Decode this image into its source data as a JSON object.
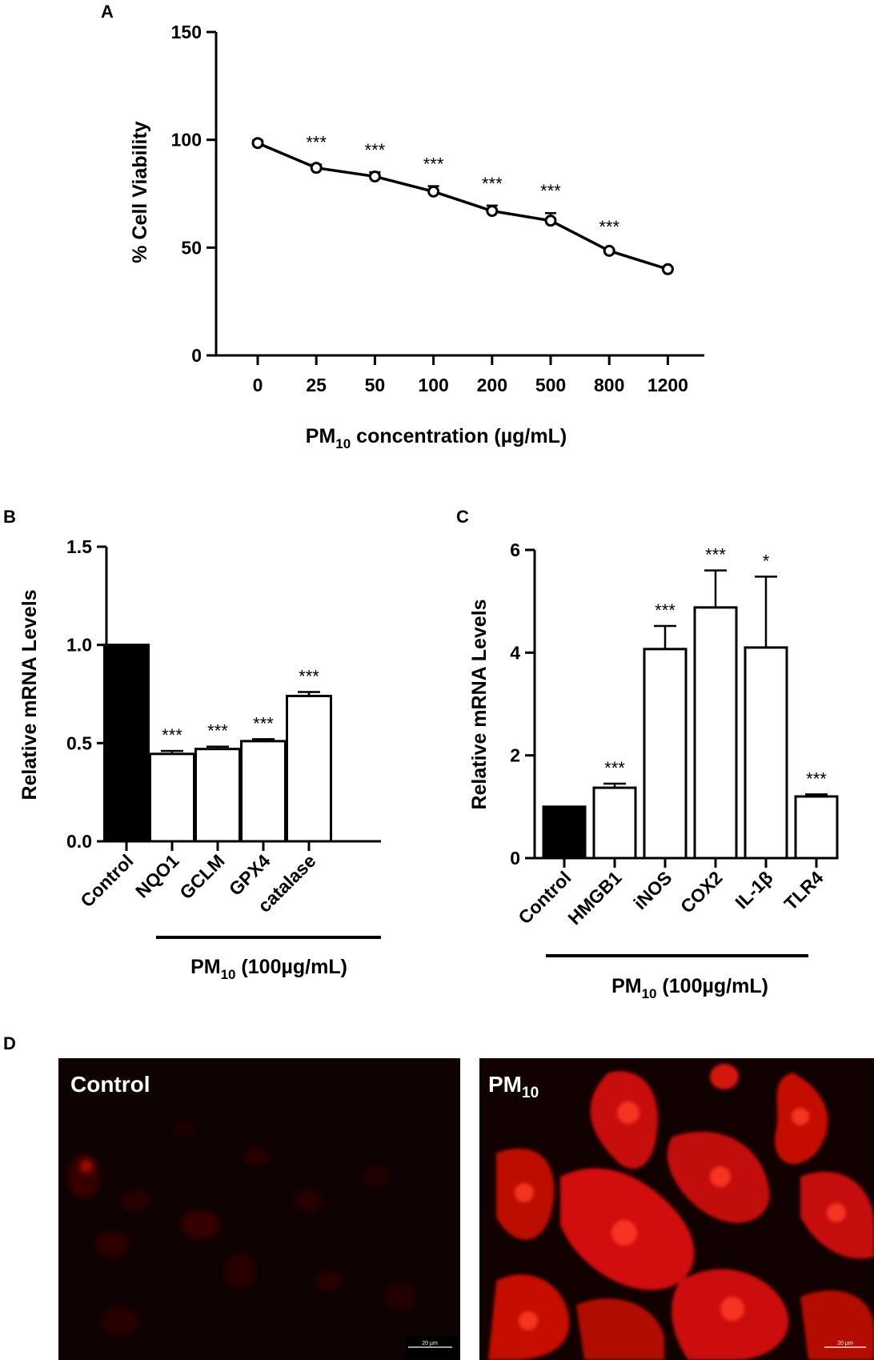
{
  "panels": {
    "a_letter": "A",
    "b_letter": "B",
    "c_letter": "C",
    "d_letter": "D"
  },
  "chart_data": [
    {
      "type": "line",
      "panel": "A",
      "xlabel": "PM10 concentration (µg/mL)",
      "xlabel_main": "PM",
      "xlabel_sub": "10",
      "xlabel_rest": " concentration (µg/mL)",
      "ylabel": "% Cell Viability",
      "ylim": [
        0,
        150
      ],
      "yticks": [
        0,
        50,
        100,
        150
      ],
      "categories": [
        "0",
        "25",
        "50",
        "100",
        "200",
        "500",
        "800",
        "1200"
      ],
      "series": [
        {
          "values": [
            98.5,
            87,
            83,
            76,
            67,
            62.5,
            48.5,
            40
          ],
          "errors": [
            1.2,
            1.5,
            2,
            2.5,
            2.5,
            3.5,
            0.8,
            0.8
          ],
          "significance": [
            "",
            "***",
            "***",
            "***",
            "***",
            "***",
            "***",
            ""
          ]
        }
      ]
    },
    {
      "type": "bar",
      "panel": "B",
      "ylabel": "Relative mRNA Levels",
      "ylim": [
        0,
        1.5
      ],
      "yticks": [
        "0.0",
        "0.5",
        "1.0",
        "1.5"
      ],
      "categories": [
        "Control",
        "NQO1",
        "GCLM",
        "GPX4",
        "catalase"
      ],
      "values": [
        1.0,
        0.445,
        0.47,
        0.51,
        0.74
      ],
      "errors": [
        0,
        0.015,
        0.012,
        0.01,
        0.02
      ],
      "fills": [
        "#000000",
        "#ffffff",
        "#ffffff",
        "#ffffff",
        "#ffffff"
      ],
      "significance": [
        "",
        "***",
        "***",
        "***",
        "***"
      ],
      "treatment_main": "PM",
      "treatment_sub": "10",
      "treatment_rest": " (100µg/mL)"
    },
    {
      "type": "bar",
      "panel": "C",
      "ylabel": "Relative mRNA Levels",
      "ylim": [
        0,
        6
      ],
      "yticks": [
        "0",
        "2",
        "4",
        "6"
      ],
      "categories": [
        "Control",
        "HMGB1",
        "iNOS",
        "COX2",
        "IL-1β",
        "TLR4"
      ],
      "values": [
        1.0,
        1.37,
        4.07,
        4.88,
        4.1,
        1.2
      ],
      "errors": [
        0,
        0.08,
        0.45,
        0.72,
        1.38,
        0.04
      ],
      "fills": [
        "#000000",
        "#ffffff",
        "#ffffff",
        "#ffffff",
        "#ffffff",
        "#ffffff"
      ],
      "significance": [
        "",
        "***",
        "***",
        "***",
        "*",
        "***"
      ],
      "treatment_main": "PM",
      "treatment_sub": "10",
      "treatment_rest": " (100µg/mL)"
    }
  ],
  "micrographs": {
    "left_label": "Control",
    "right_label_main": "PM",
    "right_label_sub": "10",
    "scale_text": "20 µm"
  }
}
